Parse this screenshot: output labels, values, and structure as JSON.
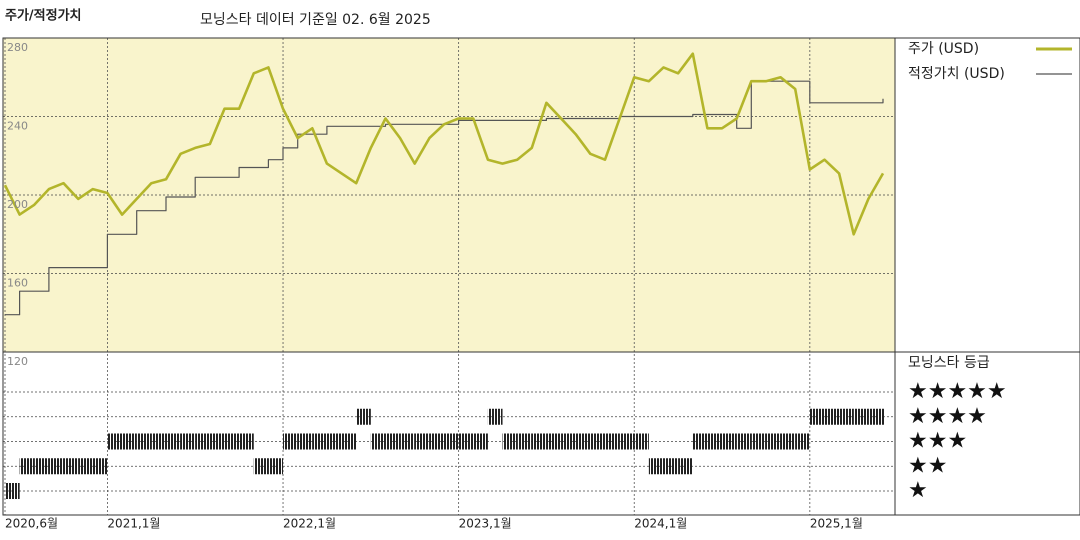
{
  "chart_data": {
    "type": "line",
    "title": "주가/적정가치",
    "subtitle": "모닝스타 데이터 기준일 02. 6월 2025",
    "x": [
      "2020-06",
      "2020-07",
      "2020-08",
      "2020-09",
      "2020-10",
      "2020-11",
      "2020-12",
      "2021-01",
      "2021-02",
      "2021-03",
      "2021-04",
      "2021-05",
      "2021-06",
      "2021-07",
      "2021-08",
      "2021-09",
      "2021-10",
      "2021-11",
      "2021-12",
      "2022-01",
      "2022-02",
      "2022-03",
      "2022-04",
      "2022-05",
      "2022-06",
      "2022-07",
      "2022-08",
      "2022-09",
      "2022-10",
      "2022-11",
      "2022-12",
      "2023-01",
      "2023-02",
      "2023-03",
      "2023-04",
      "2023-05",
      "2023-06",
      "2023-07",
      "2023-08",
      "2023-09",
      "2023-10",
      "2023-11",
      "2023-12",
      "2024-01",
      "2024-02",
      "2024-03",
      "2024-04",
      "2024-05",
      "2024-06",
      "2024-07",
      "2024-08",
      "2024-09",
      "2024-10",
      "2024-11",
      "2024-12",
      "2025-01",
      "2025-02",
      "2025-03",
      "2025-04",
      "2025-05",
      "2025-06"
    ],
    "series": [
      {
        "name": "주가 (USD)",
        "color": "#b3b52b",
        "step": false,
        "values": [
          205,
          190,
          195,
          203,
          206,
          198,
          203,
          201,
          190,
          198,
          206,
          208,
          221,
          224,
          226,
          244,
          244,
          262,
          265,
          244,
          229,
          234,
          216,
          211,
          206,
          224,
          239,
          229,
          216,
          229,
          236,
          239,
          239,
          218,
          216,
          218,
          224,
          247,
          239,
          231,
          221,
          218,
          239,
          260,
          258,
          265,
          262,
          272,
          234,
          234,
          239,
          258,
          258,
          260,
          254,
          213,
          218,
          211,
          180,
          198,
          211
        ]
      },
      {
        "name": "적정가치 (USD)",
        "color": "#555555",
        "step": true,
        "values": [
          139,
          151,
          151,
          163,
          163,
          163,
          163,
          180,
          180,
          192,
          192,
          199,
          199,
          209,
          209,
          209,
          214,
          214,
          218,
          224,
          231,
          231,
          235,
          235,
          235,
          235,
          236,
          236,
          236,
          236,
          236,
          238,
          238,
          238,
          238,
          238,
          238,
          239,
          239,
          239,
          239,
          239,
          240,
          240,
          240,
          240,
          240,
          241,
          241,
          241,
          234,
          258,
          258,
          258,
          258,
          247,
          247,
          247,
          247,
          247,
          249
        ]
      }
    ],
    "ylim": [
      120,
      280
    ],
    "yticks": [
      120,
      160,
      200,
      240,
      280
    ],
    "xticks": [
      {
        "value": "2020-06",
        "label": "2020,6월"
      },
      {
        "value": "2021-01",
        "label": "2021,1월"
      },
      {
        "value": "2022-01",
        "label": "2022,1월"
      },
      {
        "value": "2023-01",
        "label": "2023,1월"
      },
      {
        "value": "2024-01",
        "label": "2024,1월"
      },
      {
        "value": "2025-01",
        "label": "2025,1월"
      }
    ],
    "background": "#f9f4cc",
    "grid": true,
    "rating": {
      "title": "모닝스타 등급",
      "levels": [
        {
          "value": 5,
          "label": "★★★★★"
        },
        {
          "value": 4,
          "label": "★★★★"
        },
        {
          "value": 3,
          "label": "★★★"
        },
        {
          "value": 2,
          "label": "★★"
        },
        {
          "value": 1,
          "label": "★"
        }
      ],
      "values": [
        1,
        2,
        2,
        2,
        2,
        2,
        2,
        3,
        3,
        3,
        3,
        3,
        3,
        3,
        3,
        3,
        3,
        2,
        2,
        3,
        3,
        3,
        3,
        3,
        4,
        3,
        3,
        3,
        3,
        3,
        3,
        3,
        3,
        4,
        3,
        3,
        3,
        3,
        3,
        3,
        3,
        3,
        3,
        3,
        2,
        2,
        2,
        3,
        3,
        3,
        3,
        3,
        3,
        3,
        3,
        4,
        4,
        4,
        4,
        4,
        4
      ]
    }
  }
}
